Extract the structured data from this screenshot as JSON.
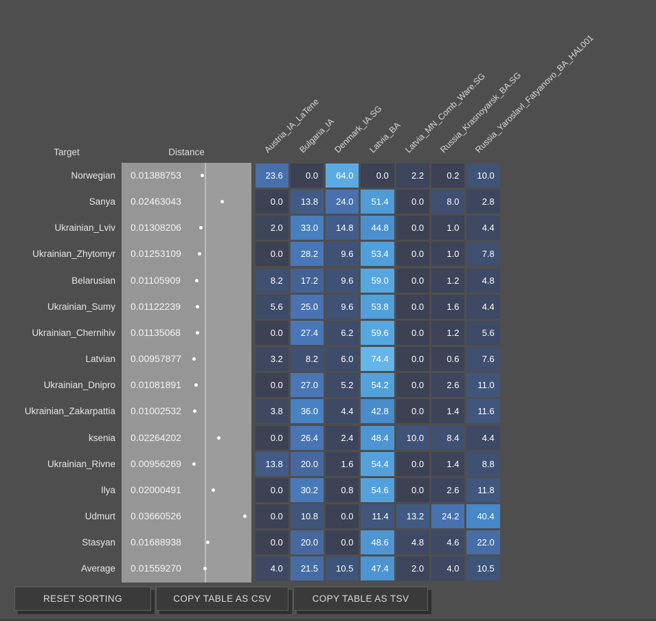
{
  "table": {
    "target_header": "Target",
    "distance_header": "Distance",
    "columns": [
      "Austria_IA_LaTene",
      "Bulgaria_IA",
      "Denmark_IA.SG",
      "Latvia_BA",
      "Latvia_MN_Comb_Ware.SG",
      "Russia_Krasnoyarsk_BA.SG",
      "Russia_Yaroslavl_Fatyanovo_BA_HAL001"
    ],
    "rows": [
      {
        "target": "Norwegian",
        "distance": "0.01388753",
        "values": [
          "23.6",
          "0.0",
          "64.0",
          "0.0",
          "2.2",
          "0.2",
          "10.0"
        ]
      },
      {
        "target": "Sanya",
        "distance": "0.02463043",
        "values": [
          "0.0",
          "13.8",
          "24.0",
          "51.4",
          "0.0",
          "8.0",
          "2.8"
        ]
      },
      {
        "target": "Ukrainian_Lviv",
        "distance": "0.01308206",
        "values": [
          "2.0",
          "33.0",
          "14.8",
          "44.8",
          "0.0",
          "1.0",
          "4.4"
        ]
      },
      {
        "target": "Ukrainian_Zhytomyr",
        "distance": "0.01253109",
        "values": [
          "0.0",
          "28.2",
          "9.6",
          "53.4",
          "0.0",
          "1.0",
          "7.8"
        ]
      },
      {
        "target": "Belarusian",
        "distance": "0.01105909",
        "values": [
          "8.2",
          "17.2",
          "9.6",
          "59.0",
          "0.0",
          "1.2",
          "4.8"
        ]
      },
      {
        "target": "Ukrainian_Sumy",
        "distance": "0.01122239",
        "values": [
          "5.6",
          "25.0",
          "9.6",
          "53.8",
          "0.0",
          "1.6",
          "4.4"
        ]
      },
      {
        "target": "Ukrainian_Chernihiv",
        "distance": "0.01135068",
        "values": [
          "0.0",
          "27.4",
          "6.2",
          "59.6",
          "0.0",
          "1.2",
          "5.6"
        ]
      },
      {
        "target": "Latvian",
        "distance": "0.00957877",
        "values": [
          "3.2",
          "8.2",
          "6.0",
          "74.4",
          "0.0",
          "0.6",
          "7.6"
        ]
      },
      {
        "target": "Ukrainian_Dnipro",
        "distance": "0.01081891",
        "values": [
          "0.0",
          "27.0",
          "5.2",
          "54.2",
          "0.0",
          "2.6",
          "11.0"
        ]
      },
      {
        "target": "Ukrainian_Zakarpattia",
        "distance": "0.01002532",
        "values": [
          "3.8",
          "36.0",
          "4.4",
          "42.8",
          "0.0",
          "1.4",
          "11.6"
        ]
      },
      {
        "target": "ksenia",
        "distance": "0.02264202",
        "values": [
          "0.0",
          "26.4",
          "2.4",
          "48.4",
          "10.0",
          "8.4",
          "4.4"
        ]
      },
      {
        "target": "Ukrainian_Rivne",
        "distance": "0.00956269",
        "values": [
          "13.8",
          "20.0",
          "1.6",
          "54.4",
          "0.0",
          "1.4",
          "8.8"
        ]
      },
      {
        "target": "Ilya",
        "distance": "0.02000491",
        "values": [
          "0.0",
          "30.2",
          "0.8",
          "54.6",
          "0.0",
          "2.6",
          "11.8"
        ]
      },
      {
        "target": "Udmurt",
        "distance": "0.03660526",
        "values": [
          "0.0",
          "10.8",
          "0.0",
          "11.4",
          "13.2",
          "24.2",
          "40.4"
        ]
      },
      {
        "target": "Stasyan",
        "distance": "0.01688938",
        "values": [
          "0.0",
          "20.0",
          "0.0",
          "48.6",
          "4.8",
          "4.6",
          "22.0"
        ]
      },
      {
        "target": "Average",
        "distance": "0.01559270",
        "values": [
          "4.0",
          "21.5",
          "10.5",
          "47.4",
          "2.0",
          "4.0",
          "10.5"
        ]
      }
    ]
  },
  "buttons": {
    "reset_sorting": "RESET SORTING",
    "copy_csv": "COPY TABLE AS CSV",
    "copy_tsv": "COPY TABLE AS TSV"
  },
  "colors": {
    "background": "#4e4e4e",
    "distance_track": "#969696",
    "distance_track_right": "#9c9c9c",
    "distance_divider": "#bcbcbc",
    "dot": "#ffffff",
    "row_label_text": "#e6e6e6",
    "distance_text": "#f3f3f3",
    "cell_text": "#ffffff",
    "header_text": "#dedede",
    "button_bg": "#3a3a3a",
    "button_text": "#dcdcdc",
    "button_border": "#606060",
    "button_shadow": "#2f2f2f",
    "heatmap_stops": [
      {
        "v": 0,
        "c": "#3d4154"
      },
      {
        "v": 10,
        "c": "#3f5377"
      },
      {
        "v": 25,
        "c": "#4973b2"
      },
      {
        "v": 40,
        "c": "#4687c8"
      },
      {
        "v": 55,
        "c": "#52a2dc"
      },
      {
        "v": 75,
        "c": "#66b6e9"
      },
      {
        "v": 100,
        "c": "#87ceeb"
      }
    ]
  }
}
